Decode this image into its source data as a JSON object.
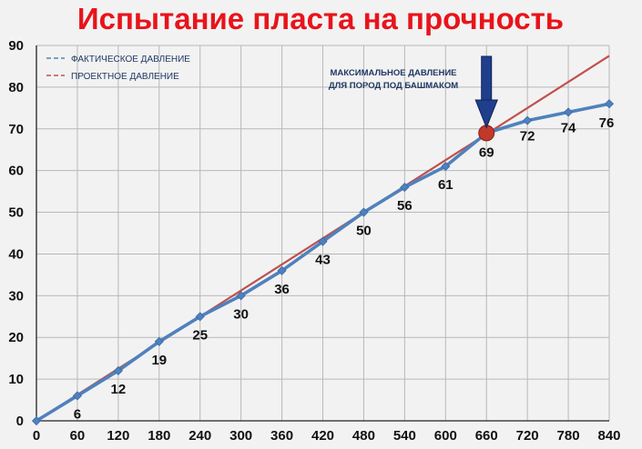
{
  "chart_data": {
    "type": "line",
    "title": "Испытание пласта на прочность",
    "xlabel": "",
    "ylabel": "",
    "xlim": [
      0,
      840
    ],
    "ylim": [
      0,
      90
    ],
    "x_ticks": [
      0,
      60,
      120,
      180,
      240,
      300,
      360,
      420,
      480,
      540,
      600,
      660,
      720,
      780,
      840
    ],
    "y_ticks": [
      0,
      10,
      20,
      30,
      40,
      50,
      60,
      70,
      80,
      90
    ],
    "grid": true,
    "legend_position": "top-left",
    "series": [
      {
        "name": "ФАКТИЧЕСКОЕ ДАВЛЕНИЕ",
        "color": "#4f81bd",
        "style": "solid-with-diamond-markers",
        "x": [
          0,
          60,
          120,
          180,
          240,
          300,
          360,
          420,
          480,
          540,
          600,
          660,
          720,
          780,
          840
        ],
        "values": [
          0,
          6,
          12,
          19,
          25,
          30,
          36,
          43,
          50,
          56,
          61,
          69,
          72,
          74,
          76
        ],
        "data_labels": [
          "",
          "6",
          "12",
          "19",
          "25",
          "30",
          "36",
          "43",
          "50",
          "56",
          "61",
          "69",
          "72",
          "74",
          "76"
        ]
      },
      {
        "name": "ПРОЕКТНОЕ ДАВЛЕНИЕ",
        "color": "#c0504d",
        "style": "solid",
        "x": [
          0,
          840
        ],
        "values": [
          0,
          87.5
        ]
      }
    ],
    "annotation": {
      "line1": "МАКСИМАЛЬНОЕ ДАВЛЕНИЕ",
      "line2": "ДЛЯ ПОРОД ПОД БАШМАКОМ",
      "x": 660,
      "y": 69,
      "marker_color": "#c0392b",
      "arrow_color": "#1f3f8c"
    }
  },
  "colors": {
    "title": "#e8141b",
    "background": "#f2f2f2",
    "grid": "#b8b8b8",
    "axis": "#222222"
  }
}
